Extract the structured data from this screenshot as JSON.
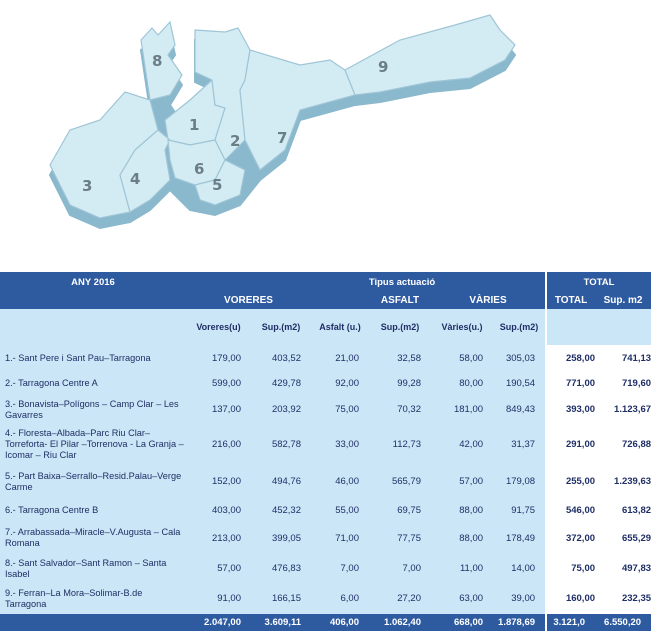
{
  "map": {
    "district_numbers": [
      "1",
      "2",
      "3",
      "4",
      "5",
      "6",
      "7",
      "8",
      "9"
    ],
    "colors": {
      "top": "#d3ecf4",
      "side": "#8ab8cc",
      "edge": "#9fc5d6",
      "label": "#6b7d86"
    }
  },
  "table": {
    "year_label": "ANY 2016",
    "tipus_label": "Tipus actuació",
    "total_label": "TOTAL",
    "groups": {
      "voreres": "VORERES",
      "asfalt": "ASFALT",
      "varies": "VÀRIES",
      "total": "TOTAL",
      "sup": "Sup. m2"
    },
    "columns": [
      "Voreres(u)",
      "Sup.(m2)",
      "Asfalt (u.)",
      "Sup.(m2)",
      "Vàries(u.)",
      "Sup.(m2)"
    ],
    "rows": [
      {
        "name": "1.- Sant Pere i Sant Pau–Tarragona",
        "values": [
          "179,00",
          "403,52",
          "21,00",
          "32,58",
          "58,00",
          "305,03"
        ],
        "total": "258,00",
        "sup": "741,13"
      },
      {
        "name": "2.- Tarragona Centre A",
        "values": [
          "599,00",
          "429,78",
          "92,00",
          "99,28",
          "80,00",
          "190,54"
        ],
        "total": "771,00",
        "sup": "719,60"
      },
      {
        "name": "3.- Bonavista–Polígons – Camp Clar – Les Gavarres",
        "values": [
          "137,00",
          "203,92",
          "75,00",
          "70,32",
          "181,00",
          "849,43"
        ],
        "total": "393,00",
        "sup": "1.123,67"
      },
      {
        "name": "4.- Floresta–Albada–Parc Riu Clar–Torreforta- El Pilar –Torrenova - La Granja – Icomar – Riu Clar",
        "values": [
          "216,00",
          "582,78",
          "33,00",
          "112,73",
          "42,00",
          "31,37"
        ],
        "total": "291,00",
        "sup": "726,88"
      },
      {
        "name": "5.- Part Baixa–Serrallo–Resid.Palau–Verge Carme",
        "values": [
          "152,00",
          "494,76",
          "46,00",
          "565,79",
          "57,00",
          "179,08"
        ],
        "total": "255,00",
        "sup": "1.239,63"
      },
      {
        "name": "6.- Tarragona Centre B",
        "values": [
          "403,00",
          "452,32",
          "55,00",
          "69,75",
          "88,00",
          "91,75"
        ],
        "total": "546,00",
        "sup": "613,82"
      },
      {
        "name": "7.- Arrabassada–Miracle–V.Augusta – Cala Romana",
        "values": [
          "213,00",
          "399,05",
          "71,00",
          "77,75",
          "88,00",
          "178,49"
        ],
        "total": "372,00",
        "sup": "655,29"
      },
      {
        "name": "8.- Sant Salvador–Sant Ramon – Santa Isabel",
        "values": [
          "57,00",
          "476,83",
          "7,00",
          "7,00",
          "11,00",
          "14,00"
        ],
        "total": "75,00",
        "sup": "497,83"
      },
      {
        "name": "9.- Ferran–La Mora–Solimar-B.de Tarragona",
        "values": [
          "91,00",
          "166,15",
          "6,00",
          "27,20",
          "63,00",
          "39,00"
        ],
        "total": "160,00",
        "sup": "232,35"
      }
    ],
    "totals": [
      "2.047,00",
      "3.609,11",
      "406,00",
      "1.062,40",
      "668,00",
      "1.878,69",
      "3.121,0",
      "6.550,20"
    ]
  }
}
